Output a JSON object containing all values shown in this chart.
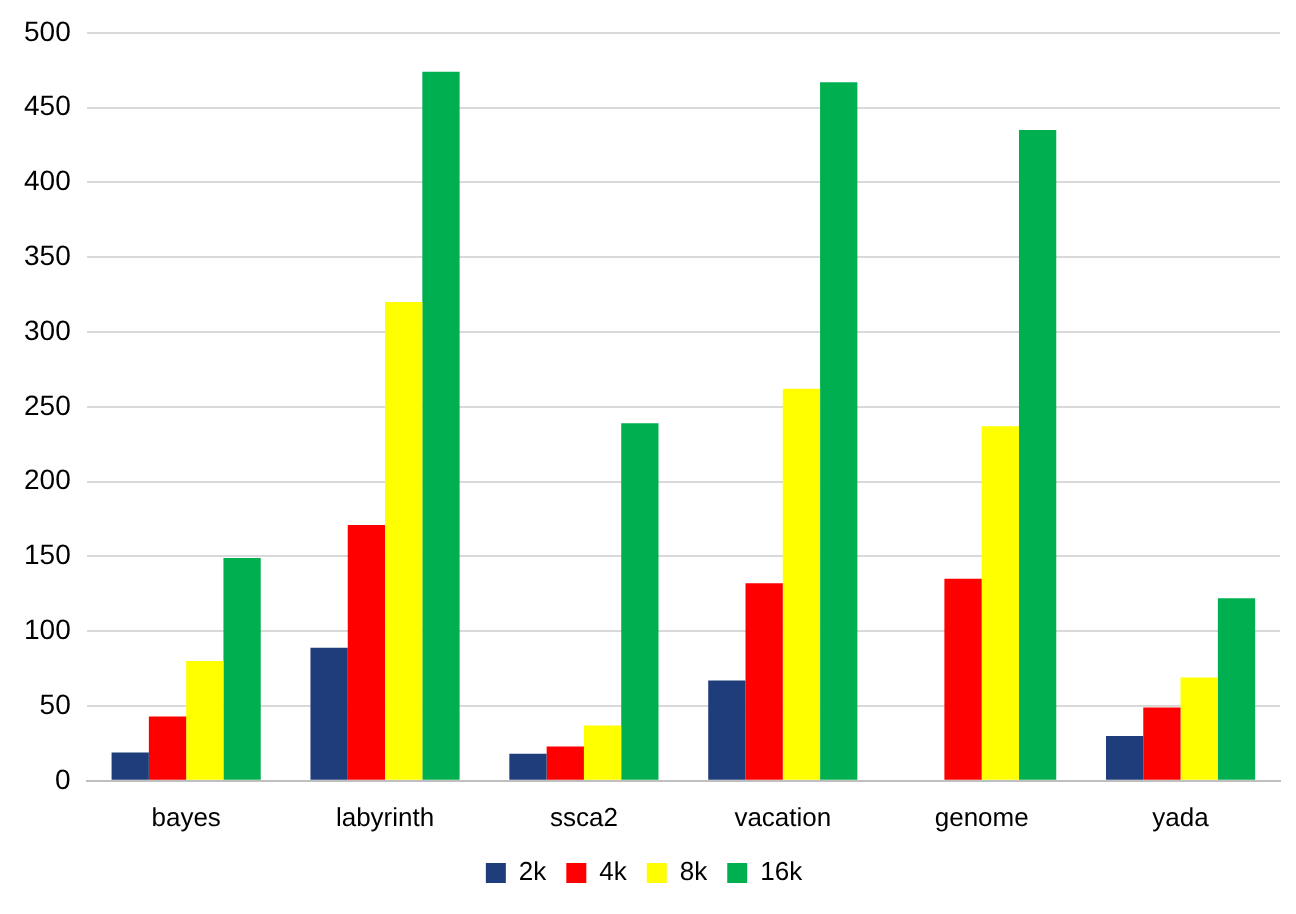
{
  "chart_data": {
    "type": "bar",
    "categories": [
      "bayes",
      "labyrinth",
      "ssca2",
      "vacation",
      "genome",
      "yada"
    ],
    "series": [
      {
        "name": "2k",
        "color": "#1f3d7a",
        "values": [
          19,
          89,
          18,
          67,
          0,
          30
        ]
      },
      {
        "name": "4k",
        "color": "#ff0000",
        "values": [
          43,
          171,
          23,
          132,
          135,
          49
        ]
      },
      {
        "name": "8k",
        "color": "#ffff00",
        "values": [
          80,
          320,
          37,
          262,
          237,
          69
        ]
      },
      {
        "name": "16k",
        "color": "#00b050",
        "values": [
          149,
          474,
          239,
          467,
          435,
          122
        ]
      }
    ],
    "ylim": [
      0,
      500
    ],
    "yticks": [
      0,
      50,
      100,
      150,
      200,
      250,
      300,
      350,
      400,
      450,
      500
    ],
    "grid": "y",
    "legend": "bottom"
  }
}
